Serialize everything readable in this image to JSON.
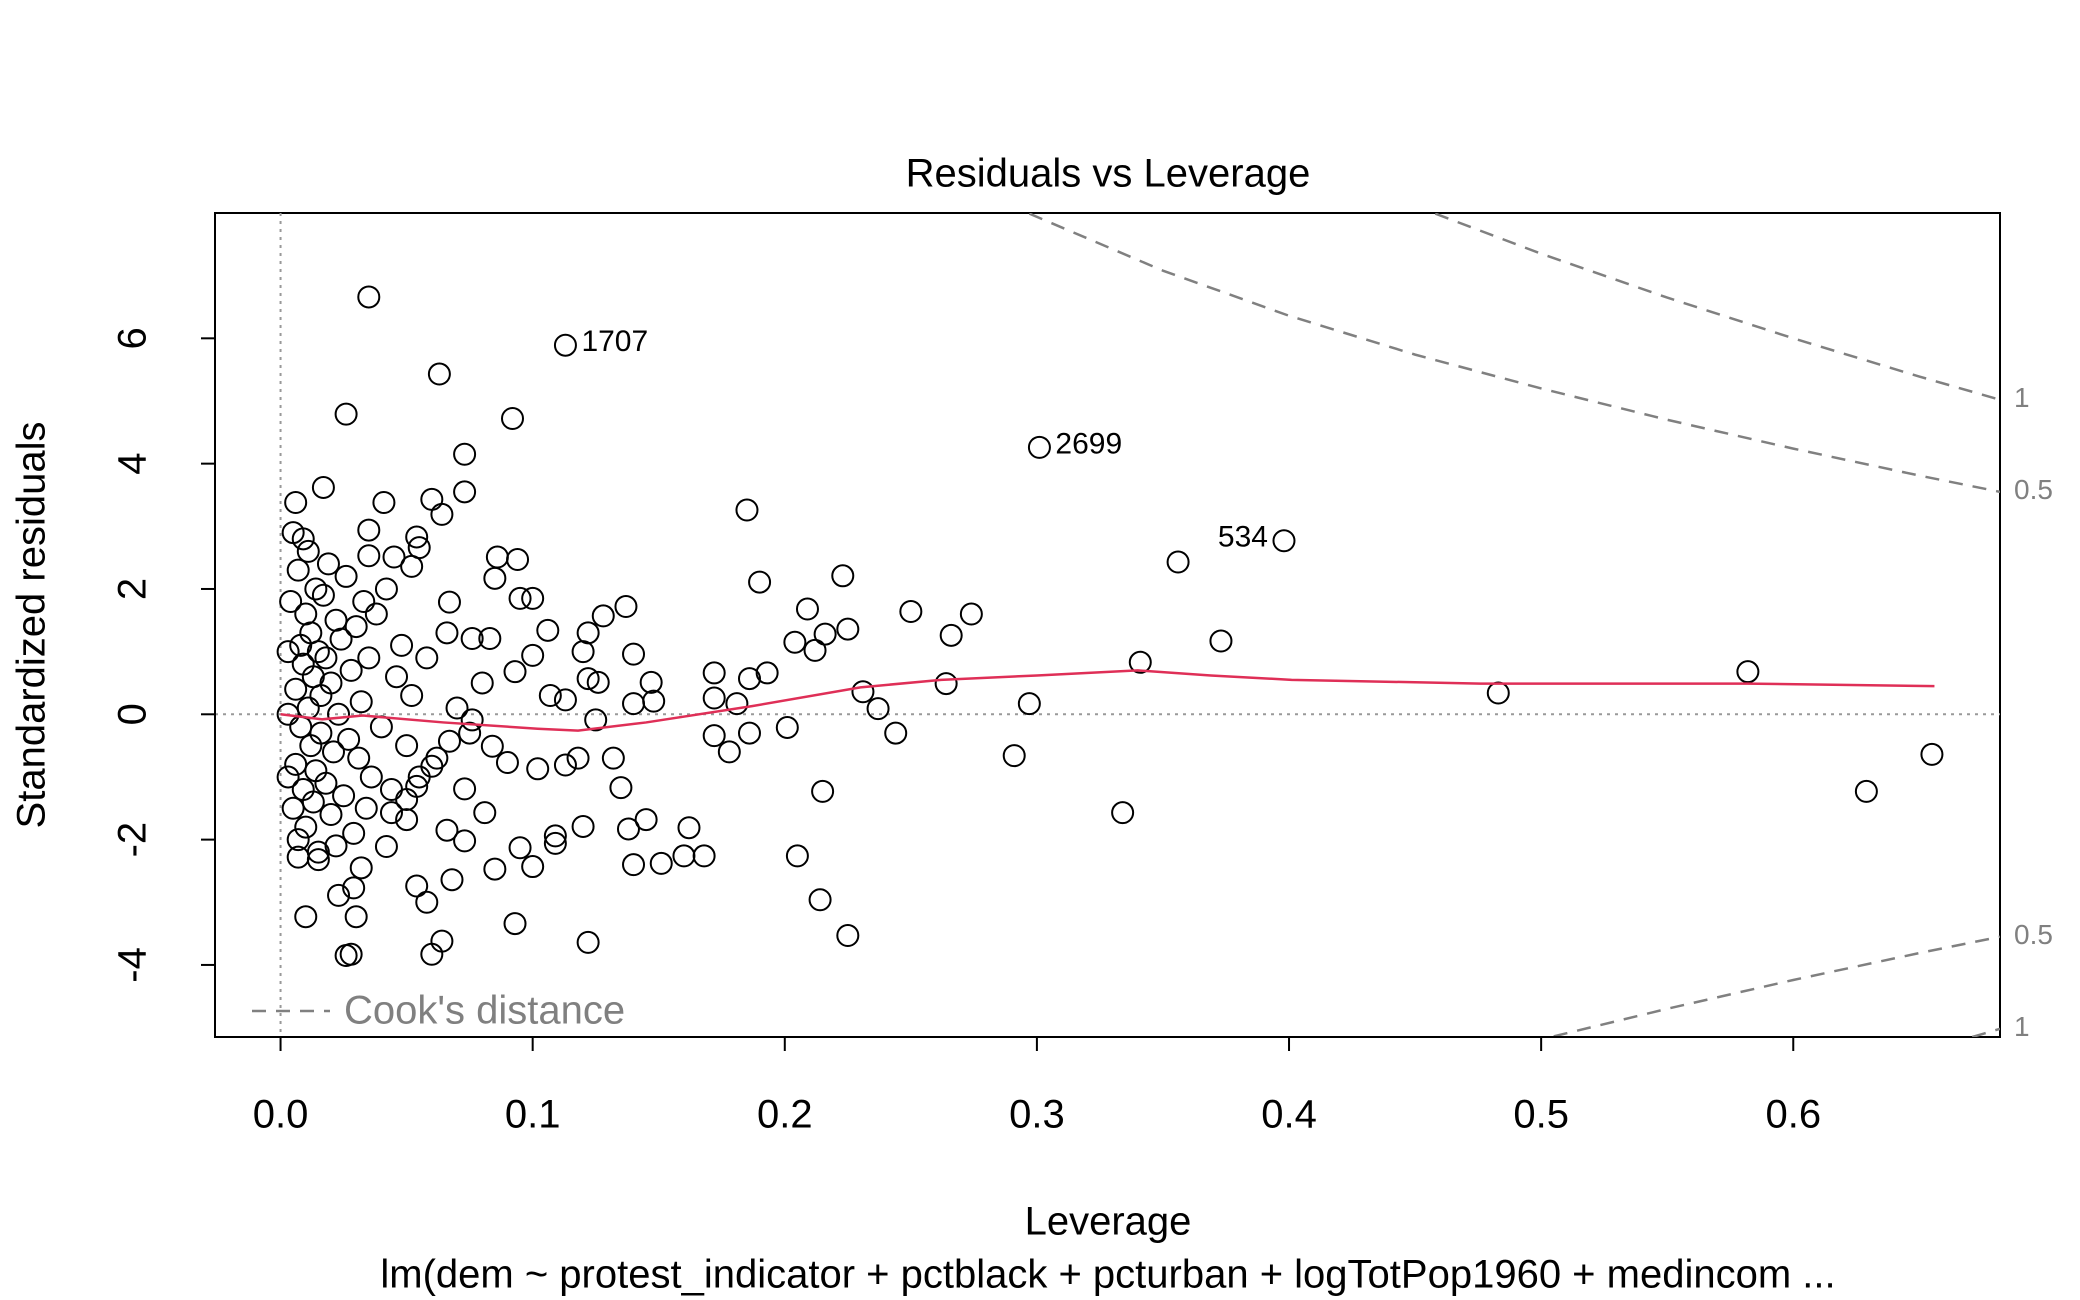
{
  "chart_data": {
    "type": "scatter",
    "title": "Residuals vs Leverage",
    "x_label": "Leverage",
    "y_label": "Standardized residuals",
    "subtitle": "lm(dem ~ protest_indicator + pctblack + pcturban + logTotPop1960 + medincom ...",
    "xlim": [
      -0.026,
      0.682
    ],
    "ylim": [
      -5.15,
      8.0
    ],
    "xticks": [
      {
        "value": 0,
        "label": "0.0"
      },
      0.1,
      0.2,
      0.3,
      0.4,
      0.5,
      0.6
    ],
    "yticks": [
      -4,
      -2,
      0,
      2,
      4,
      6
    ],
    "hline": 0,
    "vline": 0,
    "series": [
      {
        "color": "#000000",
        "x": [
          0.035,
          0.063,
          0.026,
          0.092,
          0.073,
          0.185,
          0.017,
          0.006,
          0.041,
          0.06,
          0.073,
          0.064,
          0.356,
          0.19,
          0.223,
          0.373,
          0.25,
          0.274,
          0.209,
          0.266,
          0.204,
          0.212,
          0.216,
          0.225,
          0.341,
          0.483,
          0.582,
          0.655,
          0.629,
          0.334,
          0.291,
          0.297,
          0.264,
          0.231,
          0.237,
          0.244,
          0.201,
          0.172,
          0.172,
          0.193,
          0.186,
          0.186,
          0.181,
          0.178,
          0.172,
          0.215,
          0.205,
          0.214,
          0.225,
          0.168,
          0.16,
          0.162,
          0.151,
          0.14,
          0.145,
          0.138,
          0.135,
          0.132,
          0.122,
          0.12,
          0.109,
          0.109,
          0.1,
          0.093,
          0.085,
          0.095,
          0.081,
          0.066,
          0.068,
          0.054,
          0.058,
          0.06,
          0.064,
          0.028,
          0.026,
          0.01,
          0.03,
          0.023,
          0.029,
          0.032,
          0.042,
          0.015,
          0.007,
          0.073,
          0.044,
          0.05,
          0.137,
          0.128,
          0.122,
          0.12,
          0.122,
          0.126,
          0.14,
          0.147,
          0.148,
          0.14,
          0.125,
          0.106,
          0.1,
          0.095,
          0.094,
          0.086,
          0.085,
          0.067,
          0.054,
          0.045,
          0.055,
          0.035,
          0.035,
          0.052,
          0.083,
          0.076,
          0.093,
          0.107,
          0.1,
          0.113,
          0.076,
          0.067,
          0.084,
          0.09,
          0.102,
          0.113,
          0.118,
          0.06,
          0.054,
          0.073,
          0.05,
          0.004,
          0.005,
          0.006,
          0.006,
          0.007,
          0.007,
          0.008,
          0.008,
          0.009,
          0.009,
          0.01,
          0.01,
          0.011,
          0.011,
          0.012,
          0.012,
          0.013,
          0.013,
          0.014,
          0.014,
          0.015,
          0.015,
          0.016,
          0.016,
          0.017,
          0.018,
          0.018,
          0.019,
          0.02,
          0.02,
          0.021,
          0.022,
          0.022,
          0.023,
          0.024,
          0.025,
          0.026,
          0.027,
          0.028,
          0.029,
          0.03,
          0.031,
          0.032,
          0.033,
          0.034,
          0.035,
          0.036,
          0.038,
          0.04,
          0.042,
          0.044,
          0.046,
          0.048,
          0.05,
          0.052,
          0.055,
          0.058,
          0.062,
          0.066,
          0.07,
          0.075,
          0.08,
          0.005,
          0.009,
          0.003,
          0.003,
          0.003
        ],
        "y": [
          6.66,
          5.43,
          4.79,
          4.72,
          4.15,
          3.26,
          3.62,
          3.38,
          3.38,
          3.43,
          3.55,
          3.19,
          2.43,
          2.11,
          2.21,
          1.17,
          1.64,
          1.6,
          1.68,
          1.26,
          1.15,
          1.02,
          1.28,
          1.36,
          0.83,
          0.34,
          0.68,
          -0.64,
          -1.23,
          -1.57,
          -0.66,
          0.17,
          0.49,
          0.36,
          0.09,
          -0.3,
          -0.21,
          0.26,
          0.66,
          0.66,
          0.57,
          -0.3,
          0.17,
          -0.6,
          -0.34,
          -1.23,
          -2.26,
          -2.96,
          -3.53,
          -2.26,
          -2.26,
          -1.81,
          -2.38,
          -2.4,
          -1.68,
          -1.83,
          -1.17,
          -0.7,
          -3.64,
          -1.79,
          -1.94,
          -2.06,
          -2.43,
          -3.34,
          -2.47,
          -2.13,
          -1.57,
          -1.85,
          -2.64,
          -2.74,
          -3.0,
          -3.83,
          -3.62,
          -3.83,
          -3.85,
          -3.23,
          -3.23,
          -2.89,
          -2.77,
          -2.45,
          -2.11,
          -2.32,
          -2.28,
          -2.02,
          -1.57,
          -1.68,
          1.72,
          1.57,
          1.3,
          1.0,
          0.57,
          0.51,
          0.96,
          0.51,
          0.21,
          0.17,
          -0.09,
          1.34,
          1.85,
          1.85,
          2.47,
          2.51,
          2.17,
          1.79,
          2.83,
          2.51,
          2.66,
          2.53,
          2.94,
          2.36,
          1.21,
          1.21,
          0.68,
          0.3,
          0.94,
          0.23,
          -0.09,
          -0.43,
          -0.51,
          -0.77,
          -0.87,
          -0.81,
          -0.7,
          -0.83,
          -1.15,
          -1.19,
          -1.36,
          1.8,
          -1.5,
          0.4,
          -0.8,
          2.3,
          -2.0,
          1.1,
          -0.2,
          0.8,
          -1.2,
          1.6,
          -1.8,
          0.1,
          2.6,
          -0.5,
          1.3,
          -1.4,
          0.6,
          2.0,
          -0.9,
          1.0,
          -2.2,
          0.3,
          -0.3,
          1.9,
          -1.1,
          0.9,
          2.4,
          -1.6,
          0.5,
          -0.6,
          1.5,
          -2.1,
          0.0,
          1.2,
          -1.3,
          2.2,
          -0.4,
          0.7,
          -1.9,
          1.4,
          -0.7,
          0.2,
          1.8,
          -1.5,
          0.9,
          -1.0,
          1.6,
          -0.2,
          2.0,
          -1.2,
          0.6,
          1.1,
          -0.5,
          0.3,
          -1.0,
          0.9,
          -0.7,
          1.3,
          0.1,
          -0.3,
          0.5,
          2.9,
          2.8,
          0.0,
          1.0,
          -1.0
        ]
      }
    ],
    "annotations": [
      {
        "text": "1707",
        "x": 0.113,
        "y": 5.89
      },
      {
        "text": "2699",
        "x": 0.301,
        "y": 4.26
      },
      {
        "text": "534",
        "x": 0.398,
        "y": 2.77
      }
    ],
    "smooth": {
      "color": "#df2f57",
      "x": [
        0,
        0.0166,
        0.0326,
        0.0646,
        0.102,
        0.118,
        0.145,
        0.187,
        0.23,
        0.262,
        0.3,
        0.34,
        0.369,
        0.401,
        0.476,
        0.582,
        0.656
      ],
      "y": [
        0,
        -0.08,
        -0.02,
        -0.13,
        -0.23,
        -0.26,
        -0.13,
        0.13,
        0.43,
        0.55,
        0.62,
        0.7,
        0.62,
        0.55,
        0.49,
        0.49,
        0.45
      ]
    },
    "cooks_distance": {
      "label": "Cook's distance",
      "color": "#808080",
      "lines": [
        {
          "level": 1,
          "x": [
            0.458,
            0.5,
            0.55,
            0.6,
            0.65,
            0.682
          ],
          "y": [
            7.99,
            7.35,
            6.65,
            6.0,
            5.39,
            5.02
          ]
        },
        {
          "level": 0.5,
          "x": [
            0.297,
            0.35,
            0.4,
            0.45,
            0.5,
            0.55,
            0.6,
            0.65,
            0.682
          ],
          "y": [
            7.99,
            7.08,
            6.36,
            5.74,
            5.2,
            4.7,
            4.24,
            3.81,
            3.55
          ]
        },
        {
          "level": 0.5,
          "x": [
            0.505,
            0.55,
            0.6,
            0.65,
            0.682
          ],
          "y": [
            -5.14,
            -4.7,
            -4.24,
            -3.81,
            -3.55
          ]
        },
        {
          "level": 1,
          "x": [
            0.671,
            0.682
          ],
          "y": [
            -5.15,
            -5.02
          ]
        }
      ]
    }
  }
}
